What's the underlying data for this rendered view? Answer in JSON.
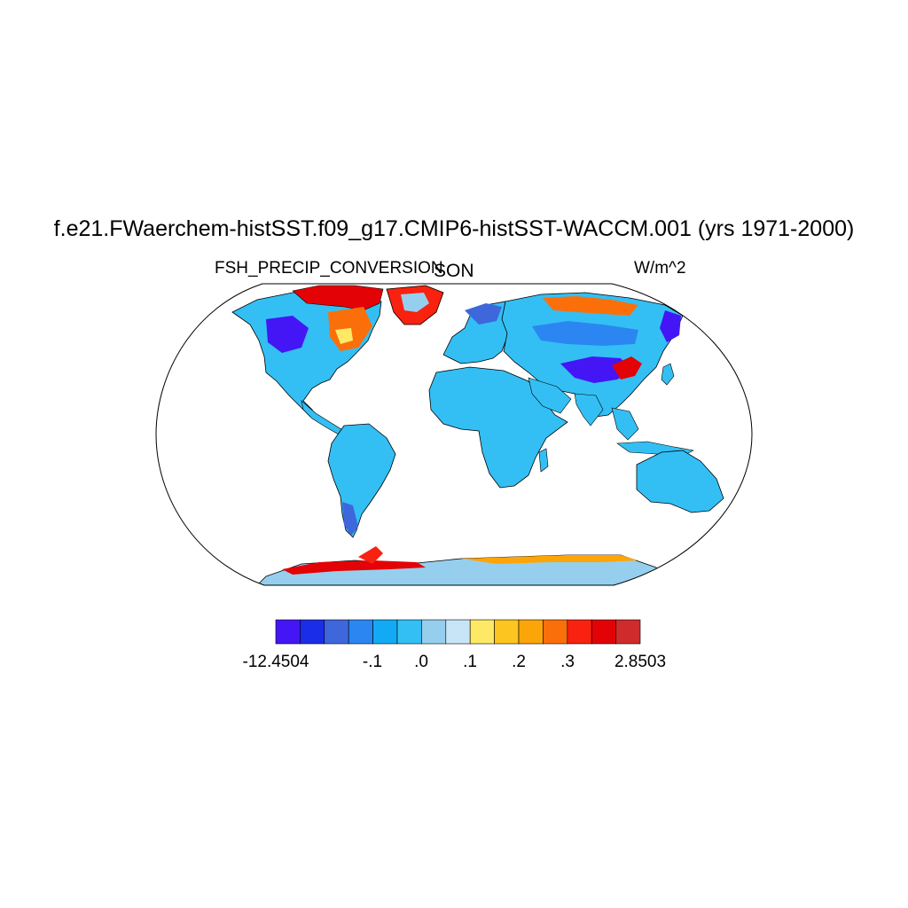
{
  "title": "f.e21.FWaerchem-histSST.f09_g17.CMIP6-histSST-WACCM.001 (yrs 1971-2000)",
  "variable_label": "FSH_PRECIP_CONVERSION",
  "season_label": "SON",
  "units_label": "W/m^2",
  "colorbar": {
    "colors": [
      "#4416f5",
      "#1a2de8",
      "#3e67dc",
      "#2b86f2",
      "#13aaf5",
      "#33bff4",
      "#96cfee",
      "#c7e5f6",
      "#fde965",
      "#fcc520",
      "#fca509",
      "#fb6f0b",
      "#f9210f",
      "#e30206",
      "#d02b2c"
    ],
    "tick_labels": [
      "-12.4504",
      "-.1",
      ".0",
      ".1",
      ".2",
      ".3",
      "2.8503"
    ]
  },
  "map_colors": {
    "ocean": "#ffffff",
    "default_land": "#33bff4",
    "antarctica": "#96cfee"
  }
}
